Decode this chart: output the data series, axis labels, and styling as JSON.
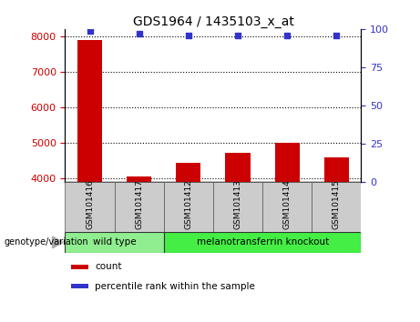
{
  "title": "GDS1964 / 1435103_x_at",
  "samples": [
    "GSM101416",
    "GSM101417",
    "GSM101412",
    "GSM101413",
    "GSM101414",
    "GSM101415"
  ],
  "counts": [
    7900,
    4050,
    4450,
    4720,
    5000,
    4580
  ],
  "percentile_ranks": [
    99,
    97,
    96,
    96,
    96,
    96
  ],
  "ylim_left": [
    3900,
    8200
  ],
  "ylim_right": [
    0,
    100
  ],
  "yticks_left": [
    4000,
    5000,
    6000,
    7000,
    8000
  ],
  "yticks_right": [
    0,
    25,
    50,
    75,
    100
  ],
  "bar_color": "#cc0000",
  "dot_color": "#3333cc",
  "groups": [
    {
      "label": "wild type",
      "indices": [
        0,
        1
      ],
      "color": "#90ee90"
    },
    {
      "label": "melanotransferrin knockout",
      "indices": [
        2,
        3,
        4,
        5
      ],
      "color": "#44ee44"
    }
  ],
  "group_label_prefix": "genotype/variation",
  "legend_items": [
    {
      "label": "count",
      "color": "#cc0000"
    },
    {
      "label": "percentile rank within the sample",
      "color": "#3333cc"
    }
  ],
  "tick_label_color_left": "#cc0000",
  "tick_label_color_right": "#3333cc",
  "sample_bg": "#cccccc"
}
